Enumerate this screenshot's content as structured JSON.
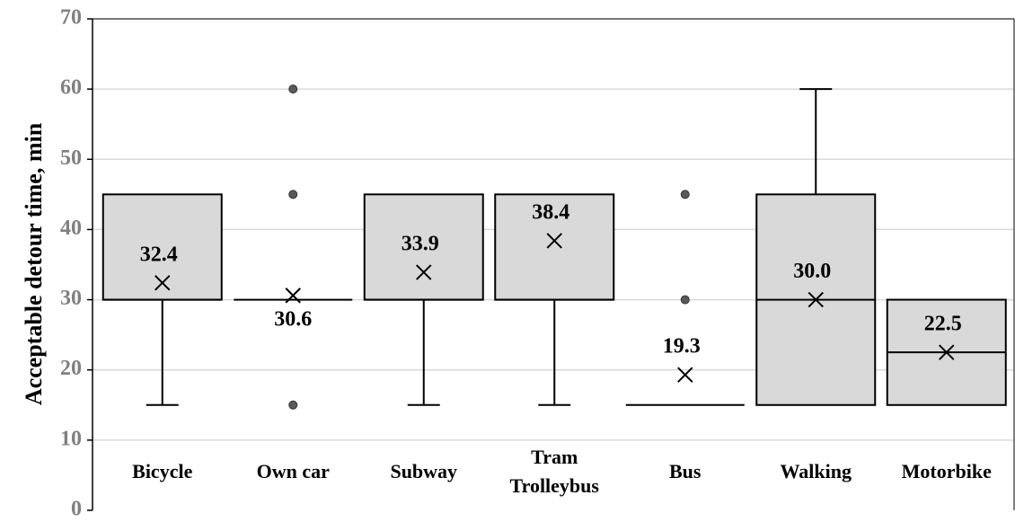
{
  "chart_data": {
    "type": "box",
    "y_label": "Acceptable detour time, min",
    "categories": [
      "Bicycle",
      "Own car",
      "Subway",
      "Tram\nTrolleybus",
      "Bus",
      "Walking",
      "Motorbike"
    ],
    "boxes": [
      {
        "min": 15,
        "q1": 30,
        "median": 30,
        "q3": 45,
        "max": 45,
        "mean": 32.4,
        "mean_label": "32.4",
        "outliers": []
      },
      {
        "min": 30,
        "q1": 30,
        "median": 30,
        "q3": 30,
        "max": 30,
        "mean": 30.6,
        "mean_label": "30.6",
        "outliers": [
          60,
          45,
          15
        ]
      },
      {
        "min": 15,
        "q1": 30,
        "median": 30,
        "q3": 45,
        "max": 45,
        "mean": 33.9,
        "mean_label": "33.9",
        "outliers": []
      },
      {
        "min": 15,
        "q1": 30,
        "median": 30,
        "q3": 45,
        "max": 45,
        "mean": 38.4,
        "mean_label": "38.4",
        "outliers": []
      },
      {
        "min": 15,
        "q1": 15,
        "median": 15,
        "q3": 15,
        "max": 15,
        "mean": 19.3,
        "mean_label": "19.3",
        "outliers": [
          45,
          30
        ]
      },
      {
        "min": 15,
        "q1": 15,
        "median": 30,
        "q3": 45,
        "max": 60,
        "mean": 30,
        "mean_label": "30.0",
        "outliers": []
      },
      {
        "min": 15,
        "q1": 15,
        "median": 22.5,
        "q3": 30,
        "max": 30,
        "mean": 22.5,
        "mean_label": "22.5",
        "outliers": []
      }
    ],
    "box_color": "#d9d9d9",
    "ylim": [
      0,
      70
    ],
    "yticks": [
      0,
      10,
      20,
      30,
      40,
      50,
      60,
      70
    ],
    "grid": true
  }
}
